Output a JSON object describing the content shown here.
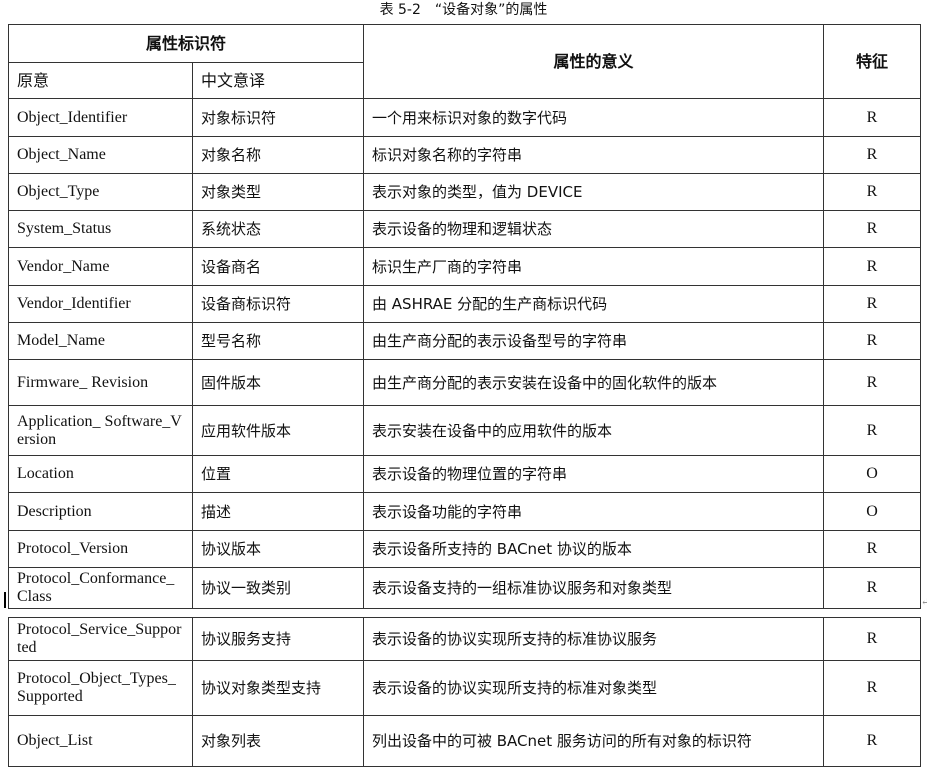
{
  "caption": "表 5-2　“设备对象”的属性",
  "header": {
    "identifier": "属性标识符",
    "original": "原意",
    "chinese": "中文意译",
    "meaning": "属性的意义",
    "feature": "特征"
  },
  "rows": [
    {
      "original": "Object_Identifier",
      "chinese": "对象标识符",
      "meaning": "一个用来标识对象的数字代码",
      "feature": "R"
    },
    {
      "original": "Object_Name",
      "chinese": "对象名称",
      "meaning": "标识对象名称的字符串",
      "feature": "R"
    },
    {
      "original": "Object_Type",
      "chinese": "对象类型",
      "meaning": "表示对象的类型，值为 DEVICE",
      "feature": "R"
    },
    {
      "original": "System_Status",
      "chinese": "系统状态",
      "meaning": "表示设备的物理和逻辑状态",
      "feature": "R"
    },
    {
      "original": "Vendor_Name",
      "chinese": "设备商名",
      "meaning": "标识生产厂商的字符串",
      "feature": "R"
    },
    {
      "original": "Vendor_Identifier",
      "chinese": "设备商标识符",
      "meaning": "由 ASHRAE 分配的生产商标识代码",
      "feature": "R"
    },
    {
      "original": "Model_Name",
      "chinese": "型号名称",
      "meaning": "由生产商分配的表示设备型号的字符串",
      "feature": "R"
    },
    {
      "original": "Firmware_ Revision",
      "chinese": "固件版本",
      "meaning": "由生产商分配的表示安装在设备中的固化软件的版本",
      "feature": "R"
    },
    {
      "original": "Application_ Software_Version",
      "chinese": "应用软件版本",
      "meaning": "表示安装在设备中的应用软件的版本",
      "feature": "R"
    },
    {
      "original": "Location",
      "chinese": "位置",
      "meaning": "表示设备的物理位置的字符串",
      "feature": "O"
    },
    {
      "original": "Description",
      "chinese": "描述",
      "meaning": "表示设备功能的字符串",
      "feature": "O"
    },
    {
      "original": "Protocol_Version",
      "chinese": "协议版本",
      "meaning": "表示设备所支持的 BACnet 协议的版本",
      "feature": "R"
    },
    {
      "original": "Protocol_Conformance_Class",
      "chinese": "协议一致类别",
      "meaning": "表示设备支持的一组标准协议服务和对象类型",
      "feature": "R"
    }
  ],
  "rows2": [
    {
      "original": "Protocol_Service_Supported",
      "chinese": "协议服务支持",
      "meaning": "表示设备的协议实现所支持的标准协议服务",
      "feature": "R"
    },
    {
      "original": "Protocol_Object_Types_Supported",
      "chinese": "协议对象类型支持",
      "meaning": "表示设备的协议实现所支持的标准对象类型",
      "feature": "R"
    },
    {
      "original": "Object_List",
      "chinese": "对象列表",
      "meaning": "列出设备中的可被 BACnet 服务访问的所有对象的标识符",
      "feature": "R"
    }
  ]
}
